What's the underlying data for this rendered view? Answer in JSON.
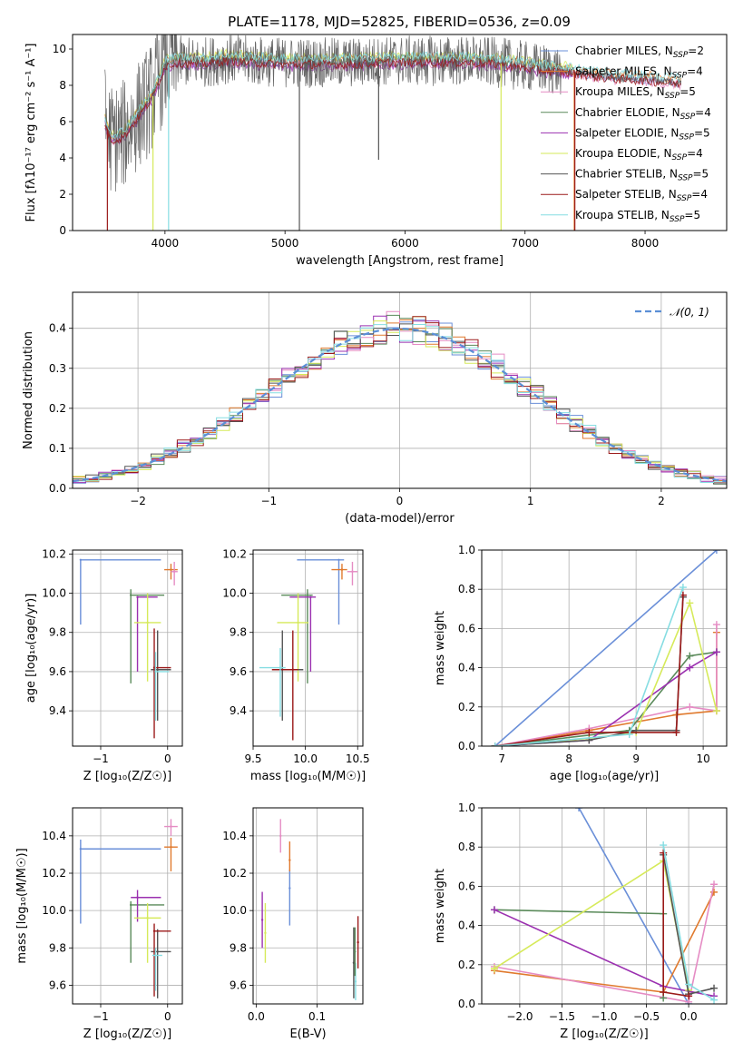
{
  "figure_title": "PLATE=1178, MJD=52825, FIBERID=0536, z=0.09",
  "series_colors": {
    "Chabrier MILES": "#6a8fd8",
    "Salpeter MILES": "#e07a2e",
    "Kroupa MILES": "#e58cc4",
    "Chabrier ELODIE": "#5a8a5a",
    "Salpeter ELODIE": "#9b30b0",
    "Kroupa ELODIE": "#d6ea5a",
    "Chabrier STELIB": "#555555",
    "Salpeter STELIB": "#9b1a1a",
    "Kroupa STELIB": "#86dde2"
  },
  "chart_data": [
    {
      "id": "spectrum",
      "type": "line",
      "xlabel": "wavelength [Angstrom, rest frame]",
      "ylabel": "Flux [fλ10⁻¹⁷ erg cm⁻² s⁻¹ A⁻¹]",
      "xlim": [
        3230,
        8680
      ],
      "ylim": [
        0,
        10.8
      ],
      "xticks": [
        4000,
        5000,
        6000,
        7000,
        8000
      ],
      "yticks": [
        0,
        2,
        4,
        6,
        8,
        10
      ],
      "legend_position": "upper right",
      "legend": [
        "Chabrier MILES, N_SSP=2",
        "Salpeter MILES, N_SSP=4",
        "Kroupa MILES, N_SSP=5",
        "Chabrier ELODIE, N_SSP=4",
        "Salpeter ELODIE, N_SSP=5",
        "Kroupa ELODIE, N_SSP=4",
        "Chabrier STELIB, N_SSP=5",
        "Salpeter STELIB, N_SSP=4",
        "Kroupa STELIB, N_SSP=5"
      ],
      "continuum": {
        "x": [
          3500,
          3550,
          3650,
          3700,
          3800,
          3900,
          4000,
          4100,
          4300,
          4500,
          4700,
          5000,
          5300,
          5600,
          5900,
          6200,
          6500,
          6800,
          7100,
          7400,
          7700,
          8000,
          8300
        ],
        "y": [
          6.0,
          5.0,
          5.2,
          5.6,
          6.5,
          7.4,
          9.1,
          9.3,
          9.2,
          9.4,
          9.3,
          9.2,
          9.2,
          9.2,
          9.3,
          9.3,
          9.3,
          9.2,
          8.9,
          8.7,
          8.4,
          8.3,
          8.1
        ]
      },
      "continuum_offsets": [
        0.0,
        0.25,
        -0.1,
        0.15,
        -0.2,
        0.35,
        0.05,
        -0.05,
        0.3
      ],
      "spike_features": [
        {
          "x": 3520,
          "y_bottom": 0.0,
          "series": "Salpeter STELIB"
        },
        {
          "x": 3900,
          "y_bottom": 0.0,
          "series": "Kroupa ELODIE"
        },
        {
          "x": 4030,
          "y_bottom": 0.0,
          "series": "Kroupa STELIB"
        },
        {
          "x": 5120,
          "y_bottom": 0.0,
          "series": "Chabrier STELIB"
        },
        {
          "x": 5780,
          "y_bottom": 3.9,
          "series": "Chabrier STELIB"
        },
        {
          "x": 6800,
          "y_bottom": 0.0,
          "series": "Kroupa ELODIE"
        },
        {
          "x": 7410,
          "y_bottom": 0.0,
          "series": "Salpeter MILES"
        },
        {
          "x": 7415,
          "y_bottom": 0.0,
          "series": "Salpeter STELIB"
        }
      ],
      "noisy_region": {
        "x_start": 3500,
        "x_end": 7300,
        "series": "Chabrier STELIB",
        "noise_amplitude": 1.4
      }
    },
    {
      "id": "residuals",
      "type": "histogram",
      "xlabel": "(data-model)/error",
      "ylabel": "Normed distribution",
      "xlim": [
        -2.5,
        2.5
      ],
      "ylim": [
        0,
        0.49
      ],
      "xticks": [
        -2,
        -1,
        0,
        1,
        2
      ],
      "yticks": [
        0.0,
        0.1,
        0.2,
        0.3,
        0.4
      ],
      "legend": [
        "𝒩(0, 1)"
      ],
      "legend_position": "upper right",
      "bin_width": 0.1,
      "gaussian": {
        "mean": 0,
        "sigma": 1
      }
    },
    {
      "id": "age_vs_Z",
      "type": "errorbar",
      "xlabel": "Z [log₁₀(Z/Z☉)]",
      "ylabel": "age  [log₁₀(age/yr)]",
      "xlim": [
        -1.42,
        0.22
      ],
      "ylim": [
        9.22,
        10.22
      ],
      "xticks": [
        -1,
        0
      ],
      "yticks": [
        9.4,
        9.6,
        9.8,
        10.0,
        10.2
      ],
      "points": [
        {
          "series": "Chabrier MILES",
          "x": -1.3,
          "xerr": [
            0,
            1.2
          ],
          "y": 10.17,
          "yerr": [
            0.33,
            0
          ]
        },
        {
          "series": "Salpeter MILES",
          "x": 0.05,
          "xerr": [
            0.1,
            0.1
          ],
          "y": 10.12,
          "yerr": [
            0.05,
            0.03
          ]
        },
        {
          "series": "Kroupa MILES",
          "x": 0.1,
          "xerr": [
            0.05,
            0.05
          ],
          "y": 10.11,
          "yerr": [
            0.07,
            0.05
          ]
        },
        {
          "series": "Chabrier ELODIE",
          "x": -0.55,
          "xerr": [
            0,
            0.5
          ],
          "y": 9.99,
          "yerr": [
            0.45,
            0.03
          ]
        },
        {
          "series": "Salpeter ELODIE",
          "x": -0.45,
          "xerr": [
            0,
            0.3
          ],
          "y": 9.98,
          "yerr": [
            0.38,
            0
          ]
        },
        {
          "series": "Kroupa ELODIE",
          "x": -0.3,
          "xerr": [
            0.2,
            0.2
          ],
          "y": 9.85,
          "yerr": [
            0.3,
            0.15
          ]
        },
        {
          "series": "Chabrier STELIB",
          "x": -0.15,
          "xerr": [
            0.1,
            0.2
          ],
          "y": 9.61,
          "yerr": [
            0.26,
            0.2
          ]
        },
        {
          "series": "Salpeter STELIB",
          "x": -0.2,
          "xerr": [
            0,
            0.25
          ],
          "y": 9.62,
          "yerr": [
            0.36,
            0.2
          ]
        },
        {
          "series": "Kroupa STELIB",
          "x": -0.18,
          "xerr": [
            0,
            0.2
          ],
          "y": 9.6,
          "yerr": [
            0.25,
            0.1
          ]
        }
      ]
    },
    {
      "id": "age_vs_mass",
      "type": "errorbar",
      "xlabel": "mass [log₁₀(M/M☉)]",
      "ylabel": "",
      "xlim": [
        9.5,
        10.55
      ],
      "ylim": [
        9.22,
        10.22
      ],
      "xticks": [
        9.5,
        10.0,
        10.5
      ],
      "yticks": [
        9.4,
        9.6,
        9.8,
        10.0,
        10.2
      ],
      "points": [
        {
          "series": "Chabrier MILES",
          "x": 10.32,
          "xerr": [
            0.4,
            0.05
          ],
          "y": 10.17,
          "yerr": [
            0.33,
            0
          ]
        },
        {
          "series": "Salpeter MILES",
          "x": 10.35,
          "xerr": [
            0.1,
            0.05
          ],
          "y": 10.12,
          "yerr": [
            0.05,
            0.03
          ]
        },
        {
          "series": "Kroupa MILES",
          "x": 10.45,
          "xerr": [
            0.05,
            0.05
          ],
          "y": 10.11,
          "yerr": [
            0.07,
            0.05
          ]
        },
        {
          "series": "Chabrier ELODIE",
          "x": 10.02,
          "xerr": [
            0.25,
            0.05
          ],
          "y": 9.99,
          "yerr": [
            0.45,
            0.03
          ]
        },
        {
          "series": "Salpeter ELODIE",
          "x": 10.05,
          "xerr": [
            0.2,
            0.05
          ],
          "y": 9.98,
          "yerr": [
            0.38,
            0
          ]
        },
        {
          "series": "Kroupa ELODIE",
          "x": 9.93,
          "xerr": [
            0.2,
            0.1
          ],
          "y": 9.85,
          "yerr": [
            0.3,
            0.15
          ]
        },
        {
          "series": "Chabrier STELIB",
          "x": 9.78,
          "xerr": [
            0.05,
            0.2
          ],
          "y": 9.61,
          "yerr": [
            0.26,
            0.2
          ]
        },
        {
          "series": "Salpeter STELIB",
          "x": 9.88,
          "xerr": [
            0.2,
            0.05
          ],
          "y": 9.61,
          "yerr": [
            0.36,
            0.2
          ]
        },
        {
          "series": "Kroupa STELIB",
          "x": 9.76,
          "xerr": [
            0.2,
            0.05
          ],
          "y": 9.62,
          "yerr": [
            0.25,
            0.1
          ]
        }
      ]
    },
    {
      "id": "weight_vs_age",
      "type": "line",
      "xlabel": "age  [log₁₀(age/yr)]",
      "ylabel": "mass weight",
      "xlim": [
        6.7,
        10.35
      ],
      "ylim": [
        0,
        1.0
      ],
      "xticks": [
        7,
        8,
        9,
        10
      ],
      "yticks": [
        0.0,
        0.2,
        0.4,
        0.6,
        0.8,
        1.0
      ],
      "series": [
        {
          "name": "Chabrier MILES",
          "x": [
            6.9,
            10.2
          ],
          "y": [
            0.0,
            1.0
          ]
        },
        {
          "name": "Salpeter MILES",
          "x": [
            6.9,
            8.3,
            9.6,
            10.2,
            10.2
          ],
          "y": [
            0.0,
            0.08,
            0.16,
            0.18,
            0.58
          ]
        },
        {
          "name": "Kroupa MILES",
          "x": [
            6.9,
            8.3,
            9.8,
            10.2,
            10.2
          ],
          "y": [
            0.0,
            0.09,
            0.2,
            0.18,
            0.62
          ]
        },
        {
          "name": "Chabrier ELODIE",
          "x": [
            6.9,
            8.9,
            9.8,
            10.2
          ],
          "y": [
            0.0,
            0.08,
            0.46,
            0.48
          ]
        },
        {
          "name": "Salpeter ELODIE",
          "x": [
            6.9,
            8.3,
            9.8,
            10.2
          ],
          "y": [
            0.0,
            0.03,
            0.4,
            0.48
          ]
        },
        {
          "name": "Kroupa ELODIE",
          "x": [
            6.9,
            8.3,
            9.0,
            9.8,
            10.2
          ],
          "y": [
            0.0,
            0.04,
            0.07,
            0.73,
            0.18
          ]
        },
        {
          "name": "Chabrier STELIB",
          "x": [
            6.9,
            8.3,
            9.0,
            9.6,
            9.7
          ],
          "y": [
            0.0,
            0.03,
            0.08,
            0.08,
            0.76
          ]
        },
        {
          "name": "Salpeter STELIB",
          "x": [
            6.9,
            8.3,
            9.6,
            9.7
          ],
          "y": [
            0.0,
            0.07,
            0.07,
            0.77
          ]
        },
        {
          "name": "Kroupa STELIB",
          "x": [
            6.9,
            8.9,
            9.7
          ],
          "y": [
            0.0,
            0.06,
            0.81
          ]
        }
      ]
    },
    {
      "id": "mass_vs_Z",
      "type": "errorbar",
      "xlabel": "Z [log₁₀(Z/Z☉)]",
      "ylabel": "mass [log₁₀(M/M☉)]",
      "xlim": [
        -1.42,
        0.22
      ],
      "ylim": [
        9.5,
        10.55
      ],
      "xticks": [
        -1,
        0
      ],
      "yticks": [
        9.6,
        9.8,
        10.0,
        10.2,
        10.4
      ],
      "points": [
        {
          "series": "Chabrier MILES",
          "x": -1.3,
          "xerr": [
            0,
            1.2
          ],
          "y": 10.33,
          "yerr": [
            0.4,
            0.05
          ]
        },
        {
          "series": "Salpeter MILES",
          "x": 0.05,
          "xerr": [
            0.1,
            0.1
          ],
          "y": 10.34,
          "yerr": [
            0.13,
            0.05
          ]
        },
        {
          "series": "Kroupa MILES",
          "x": 0.05,
          "xerr": [
            0.1,
            0.1
          ],
          "y": 10.45,
          "yerr": [
            0.05,
            0.04
          ]
        },
        {
          "series": "Chabrier ELODIE",
          "x": -0.55,
          "xerr": [
            0,
            0.5
          ],
          "y": 10.03,
          "yerr": [
            0.31,
            0.02
          ]
        },
        {
          "series": "Salpeter ELODIE",
          "x": -0.45,
          "xerr": [
            0.1,
            0.35
          ],
          "y": 10.07,
          "yerr": [
            0.13,
            0.04
          ]
        },
        {
          "series": "Kroupa ELODIE",
          "x": -0.3,
          "xerr": [
            0.2,
            0.2
          ],
          "y": 9.96,
          "yerr": [
            0.24,
            0.08
          ]
        },
        {
          "series": "Chabrier STELIB",
          "x": -0.15,
          "xerr": [
            0.1,
            0.2
          ],
          "y": 9.78,
          "yerr": [
            0.25,
            0.12
          ]
        },
        {
          "series": "Salpeter STELIB",
          "x": -0.2,
          "xerr": [
            0,
            0.25
          ],
          "y": 9.89,
          "yerr": [
            0.35,
            0.04
          ]
        },
        {
          "series": "Kroupa STELIB",
          "x": -0.18,
          "xerr": [
            0.05,
            0.1
          ],
          "y": 9.76,
          "yerr": [
            0.19,
            0.04
          ]
        }
      ]
    },
    {
      "id": "mass_vs_ebv",
      "type": "errorbar",
      "xlabel": "E(B-V)",
      "ylabel": "",
      "xlim": [
        -0.005,
        0.175
      ],
      "ylim": [
        9.5,
        10.55
      ],
      "xticks": [
        0.0,
        0.1
      ],
      "yticks": [
        9.6,
        9.8,
        10.0,
        10.2,
        10.4
      ],
      "points": [
        {
          "series": "Chabrier MILES",
          "x": 0.055,
          "y": 10.12,
          "yerr": [
            0.2,
            0.1
          ]
        },
        {
          "series": "Salpeter MILES",
          "x": 0.055,
          "y": 10.27,
          "yerr": [
            0.06,
            0.1
          ]
        },
        {
          "series": "Kroupa MILES",
          "x": 0.04,
          "y": 10.4,
          "yerr": [
            0.09,
            0.09
          ]
        },
        {
          "series": "Salpeter ELODIE",
          "x": 0.01,
          "y": 9.95,
          "yerr": [
            0.15,
            0.15
          ]
        },
        {
          "series": "Kroupa ELODIE",
          "x": 0.015,
          "y": 9.88,
          "yerr": [
            0.16,
            0.16
          ]
        },
        {
          "series": "Chabrier STELIB",
          "x": 0.16,
          "y": 9.72,
          "yerr": [
            0.19,
            0.19
          ]
        },
        {
          "series": "Salpeter STELIB",
          "x": 0.167,
          "y": 9.83,
          "yerr": [
            0.14,
            0.14
          ]
        },
        {
          "series": "Kroupa STELIB",
          "x": 0.163,
          "y": 9.62,
          "yerr": [
            0.1,
            0.1
          ]
        },
        {
          "series": "Chabrier ELODIE",
          "x": 0.162,
          "y": 9.78,
          "yerr": [
            0.13,
            0.13
          ]
        }
      ]
    },
    {
      "id": "weight_vs_Z",
      "type": "line",
      "xlabel": "Z [log₁₀(Z/Z☉)]",
      "ylabel": "mass weight",
      "xlim": [
        -2.45,
        0.45
      ],
      "ylim": [
        0,
        1.0
      ],
      "xticks": [
        -2.0,
        -1.5,
        -1.0,
        -0.5,
        0.0
      ],
      "yticks": [
        0.0,
        0.2,
        0.4,
        0.6,
        0.8,
        1.0
      ],
      "series": [
        {
          "name": "Chabrier MILES",
          "x": [
            -1.3,
            0.0
          ],
          "y": [
            1.0,
            0.0
          ]
        },
        {
          "name": "Salpeter MILES",
          "x": [
            -2.3,
            -0.3,
            0.3
          ],
          "y": [
            0.17,
            0.06,
            0.57
          ]
        },
        {
          "name": "Kroupa MILES",
          "x": [
            -2.3,
            0.0,
            0.3
          ],
          "y": [
            0.19,
            0.01,
            0.61
          ]
        },
        {
          "name": "Chabrier ELODIE",
          "x": [
            -2.3,
            -0.3,
            -0.3
          ],
          "y": [
            0.48,
            0.46,
            0.03
          ]
        },
        {
          "name": "Salpeter ELODIE",
          "x": [
            -2.3,
            -0.3,
            0.3
          ],
          "y": [
            0.48,
            0.09,
            0.04
          ]
        },
        {
          "name": "Kroupa ELODIE",
          "x": [
            -2.3,
            -0.3,
            0.0
          ],
          "y": [
            0.18,
            0.73,
            0.07
          ]
        },
        {
          "name": "Chabrier STELIB",
          "x": [
            -0.3,
            0.0,
            0.3
          ],
          "y": [
            0.76,
            0.05,
            0.08
          ]
        },
        {
          "name": "Salpeter STELIB",
          "x": [
            -0.3,
            -0.3,
            0.0
          ],
          "y": [
            0.77,
            0.06,
            0.04
          ]
        },
        {
          "name": "Kroupa STELIB",
          "x": [
            -0.3,
            0.0,
            0.3
          ],
          "y": [
            0.81,
            0.1,
            0.02
          ]
        }
      ]
    }
  ]
}
